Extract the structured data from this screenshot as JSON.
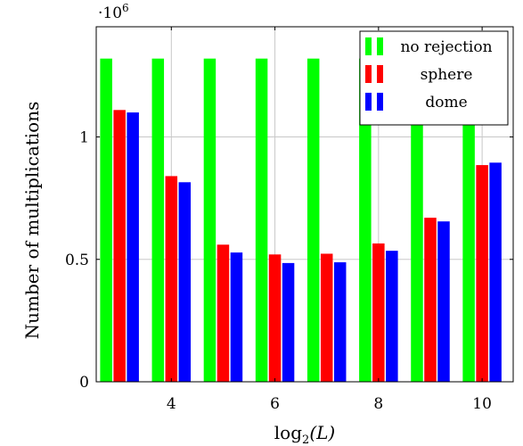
{
  "chart_data": {
    "type": "bar",
    "x": [
      3,
      4,
      5,
      6,
      7,
      8,
      9,
      10
    ],
    "xlim": [
      2.55,
      10.6
    ],
    "ylim": [
      0,
      1450000
    ],
    "xticks": [
      4,
      6,
      8,
      10
    ],
    "yticks": [
      0,
      500000,
      1000000
    ],
    "xtick_labels": [
      "4",
      "6",
      "8",
      "10"
    ],
    "ytick_labels": [
      "0",
      "0.5",
      "1"
    ],
    "y_exponent_label": "·10",
    "y_exponent_power": "6",
    "xlabel_main": "log",
    "xlabel_sub": "2",
    "xlabel_arg": "(L)",
    "ylabel": "Number of multiplications",
    "grid": true,
    "legend_position": "top-right",
    "series": [
      {
        "name": "no rejection",
        "color": "#00ff00",
        "values": [
          1320000,
          1320000,
          1320000,
          1320000,
          1320000,
          1320000,
          1320000,
          1320000
        ]
      },
      {
        "name": "sphere",
        "color": "#ff0000",
        "values": [
          1110000,
          840000,
          560000,
          520000,
          523000,
          565000,
          670000,
          885000
        ]
      },
      {
        "name": "dome",
        "color": "#0000ff",
        "values": [
          1100000,
          815000,
          528000,
          485000,
          488000,
          535000,
          655000,
          895000
        ]
      }
    ]
  }
}
